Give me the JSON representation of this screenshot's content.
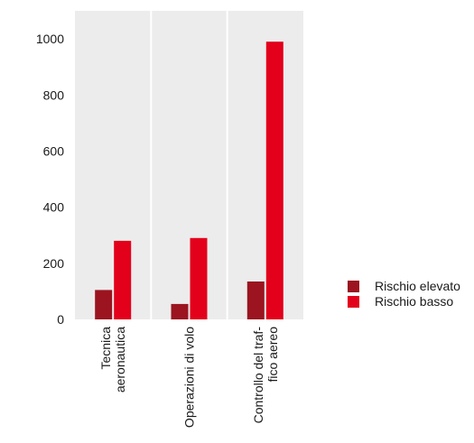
{
  "chart_data": {
    "type": "bar",
    "categories": [
      [
        "Tecnica",
        "aeronautica"
      ],
      [
        "Operazioni di volo"
      ],
      [
        "Controllo del traf-",
        "fico aereo"
      ]
    ],
    "series": [
      {
        "name": "Rischio elevato",
        "color": "#9b1420",
        "values": [
          105,
          55,
          135
        ]
      },
      {
        "name": "Rischio basso",
        "color": "#e3001b",
        "values": [
          280,
          290,
          990
        ]
      }
    ],
    "yticks": [
      0,
      200,
      400,
      600,
      800,
      1000
    ],
    "ylim": [
      0,
      1100
    ],
    "grid": false,
    "legend_position": "right",
    "plot_background": "#ececec",
    "title": "",
    "xlabel": "",
    "ylabel": ""
  }
}
